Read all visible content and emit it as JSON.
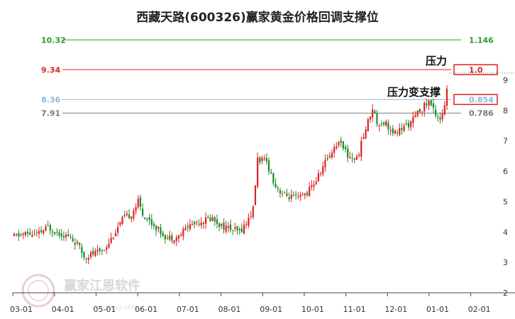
{
  "chart_data": {
    "type": "candlestick",
    "title": "西藏天路(600326)赢家黄金价格回调支撑位",
    "x_ticks": [
      "03-01",
      "04-01",
      "05-01",
      "06-01",
      "07-01",
      "08-01",
      "09-01",
      "10-01",
      "11-01",
      "12-01",
      "01-01",
      "02-01"
    ],
    "y_ticks": [
      "2",
      "3",
      "4",
      "5",
      "6",
      "7",
      "8",
      "9"
    ],
    "ylim": [
      2,
      10.7
    ],
    "levels": [
      {
        "price": 10.32,
        "left_label": "10.32",
        "right_label": "1.146",
        "color": "#2e9a2e"
      },
      {
        "price": 9.34,
        "left_label": "9.34",
        "right_label": "1.0",
        "color": "#e02020",
        "boxed": true
      },
      {
        "price": 8.36,
        "left_label": "8.36",
        "right_label": "0.854",
        "color": "#8fb8d8",
        "boxed": true
      },
      {
        "price": 7.91,
        "left_label": "7.91",
        "right_label": "0.786",
        "color": "#777777"
      }
    ],
    "annotations": [
      "压力",
      "压力变支撑"
    ],
    "watermark": {
      "text": "赢家江恩软件",
      "sub": "@ycjiang.com"
    },
    "colors": {
      "up": "#e02020",
      "down": "#1a8a2a"
    },
    "keypoints": [
      [
        0,
        3.85
      ],
      [
        5,
        3.95
      ],
      [
        10,
        3.9
      ],
      [
        15,
        4.15
      ],
      [
        19,
        4.0
      ],
      [
        24,
        3.85
      ],
      [
        28,
        3.6
      ],
      [
        31,
        3.2
      ],
      [
        36,
        3.3
      ],
      [
        40,
        3.45
      ],
      [
        44,
        3.9
      ],
      [
        48,
        4.4
      ],
      [
        52,
        4.6
      ],
      [
        55,
        5.0
      ],
      [
        57,
        4.6
      ],
      [
        61,
        4.3
      ],
      [
        65,
        4.0
      ],
      [
        68,
        3.8
      ],
      [
        73,
        3.85
      ],
      [
        77,
        4.2
      ],
      [
        82,
        4.35
      ],
      [
        88,
        4.45
      ],
      [
        92,
        4.2
      ],
      [
        96,
        4.1
      ],
      [
        100,
        4.0
      ],
      [
        103,
        4.3
      ],
      [
        106,
        4.75
      ],
      [
        108,
        6.4
      ],
      [
        112,
        6.3
      ],
      [
        116,
        5.5
      ],
      [
        120,
        5.2
      ],
      [
        126,
        5.1
      ],
      [
        130,
        5.3
      ],
      [
        134,
        5.7
      ],
      [
        138,
        6.3
      ],
      [
        142,
        6.8
      ],
      [
        145,
        7.0
      ],
      [
        148,
        6.5
      ],
      [
        152,
        6.4
      ],
      [
        156,
        7.4
      ],
      [
        159,
        8.1
      ],
      [
        161,
        7.6
      ],
      [
        165,
        7.6
      ],
      [
        168,
        7.2
      ],
      [
        172,
        7.4
      ],
      [
        176,
        7.6
      ],
      [
        180,
        8.0
      ],
      [
        184,
        8.3
      ],
      [
        187,
        7.9
      ],
      [
        189,
        7.75
      ],
      [
        191,
        8.1
      ],
      [
        192,
        8.7
      ]
    ]
  }
}
